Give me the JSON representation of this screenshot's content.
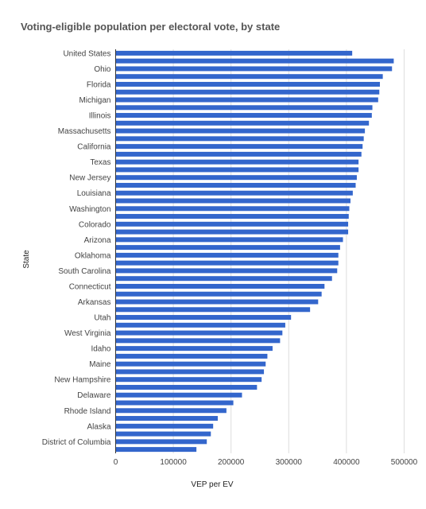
{
  "chart_data": {
    "type": "bar",
    "orientation": "horizontal",
    "title": "Voting-eligible population per electoral vote, by state",
    "xlabel": "VEP per EV",
    "ylabel": "State",
    "xlim": [
      0,
      520000
    ],
    "x_ticks": [
      0,
      100000,
      200000,
      300000,
      400000,
      500000
    ],
    "x_tick_labels": [
      "0",
      "100000",
      "200000",
      "300000",
      "400000",
      "500000"
    ],
    "grid": "vertical",
    "legend": "none",
    "bar_color": "#3366cc",
    "categories": [
      "United States",
      "",
      "Ohio",
      "",
      "Florida",
      "",
      "Michigan",
      "",
      "Illinois",
      "",
      "Massachusetts",
      "",
      "California",
      "",
      "Texas",
      "",
      "New Jersey",
      "",
      "Louisiana",
      "",
      "Washington",
      "",
      "Colorado",
      "",
      "Arizona",
      "",
      "Oklahoma",
      "",
      "South Carolina",
      "",
      "Connecticut",
      "",
      "Arkansas",
      "",
      "Utah",
      "",
      "West Virginia",
      "",
      "Idaho",
      "",
      "Maine",
      "",
      "New Hampshire",
      "",
      "Delaware",
      "",
      "Rhode Island",
      "",
      "Alaska",
      "",
      "District of Columbia",
      ""
    ],
    "values": [
      410000,
      482000,
      479000,
      463000,
      458000,
      457000,
      455000,
      445000,
      444000,
      439000,
      432000,
      430000,
      428000,
      426000,
      421000,
      421000,
      418000,
      416000,
      411000,
      407000,
      405000,
      404000,
      403000,
      403000,
      394000,
      389000,
      386000,
      386000,
      384000,
      375000,
      362000,
      357000,
      351000,
      337000,
      304000,
      294000,
      289000,
      285000,
      272000,
      263000,
      260000,
      257000,
      253000,
      245000,
      219000,
      204000,
      192000,
      177000,
      169000,
      165000,
      158000,
      140000
    ]
  }
}
